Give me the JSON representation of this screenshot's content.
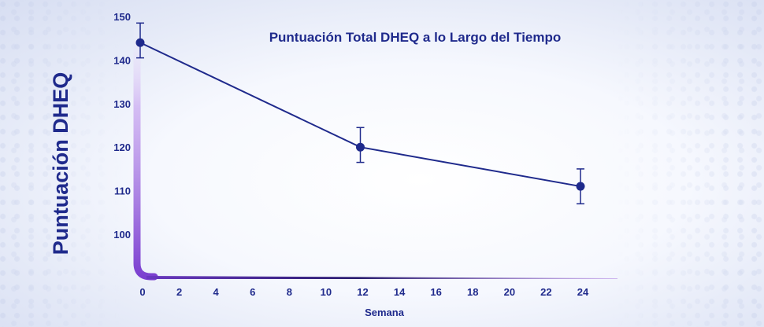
{
  "chart_data": {
    "type": "line",
    "title": "Puntuación Total DHEQ a lo Largo del Tiempo",
    "xlabel": "Semana",
    "ylabel": "Puntuación DHEQ",
    "xlim": [
      0,
      26
    ],
    "ylim": [
      90,
      150
    ],
    "x_ticks": [
      0,
      2,
      4,
      6,
      8,
      10,
      12,
      14,
      16,
      18,
      20,
      22,
      24
    ],
    "y_ticks": [
      100,
      110,
      120,
      130,
      140,
      150
    ],
    "grid": false,
    "series": [
      {
        "x": [
          0,
          12,
          24
        ],
        "y": [
          144,
          120,
          111
        ],
        "error": [
          [
            140.5,
            148.5
          ],
          [
            116.5,
            124.5
          ],
          [
            107,
            115
          ]
        ]
      }
    ],
    "colors": {
      "line": "#1f2a8c",
      "text": "#1f2a8c",
      "axis_light": "#9a6bd8",
      "axis_dark": "#221a66"
    }
  }
}
